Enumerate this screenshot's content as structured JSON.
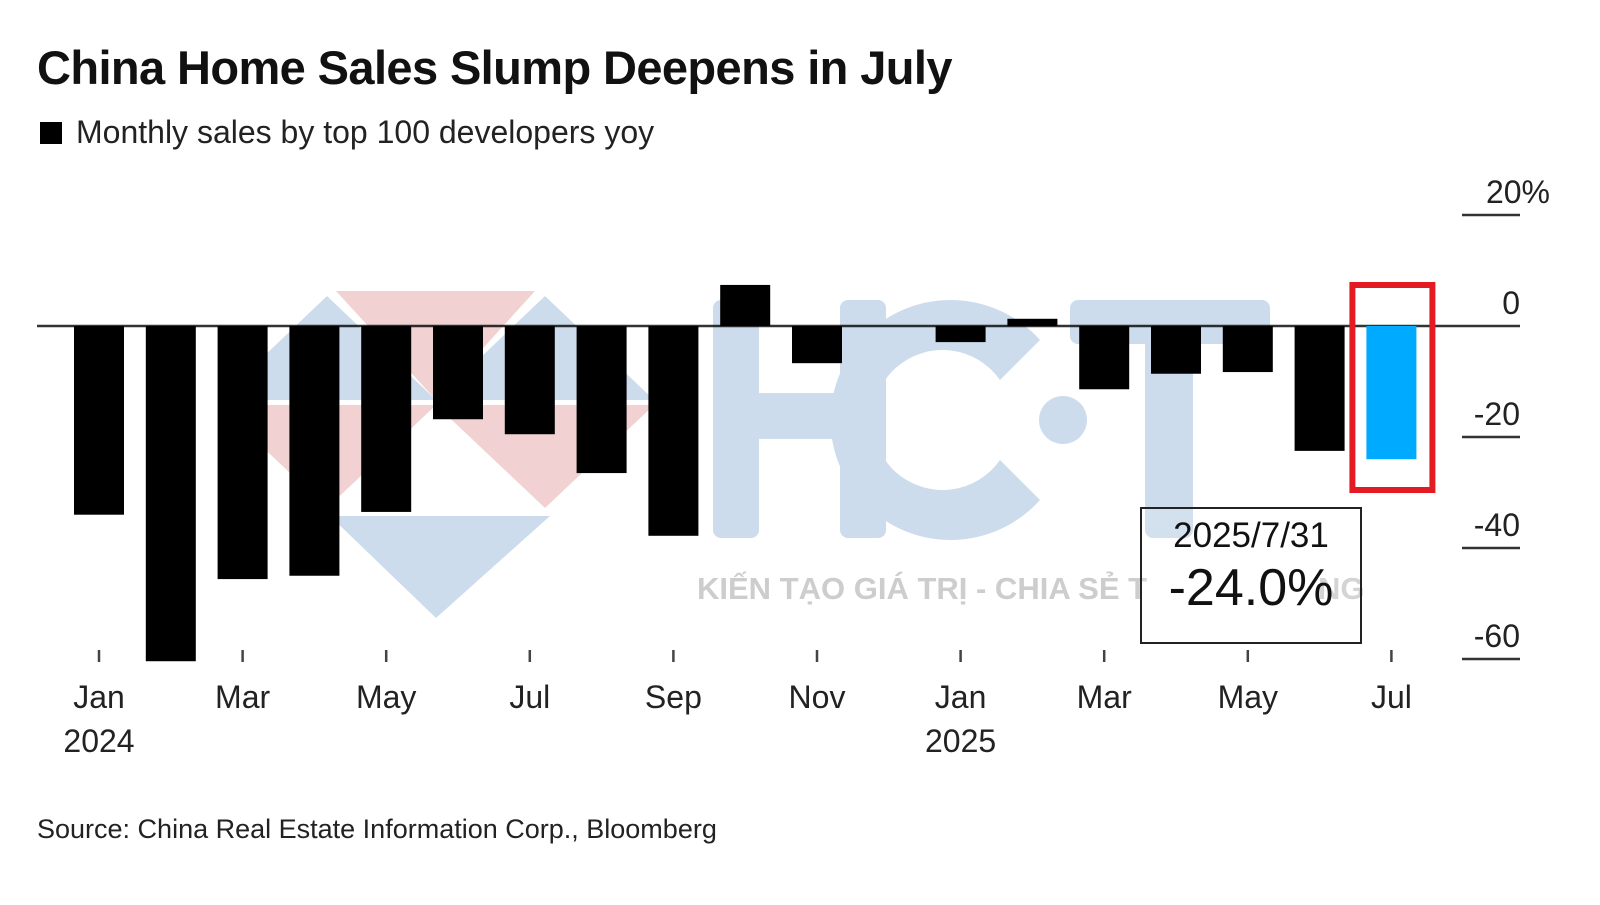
{
  "header": {
    "title": "China Home Sales Slump Deepens in July",
    "legend_label": "Monthly sales by top 100 developers yoy"
  },
  "footer": {
    "source": "Source: China Real Estate Information Corp., Bloomberg"
  },
  "watermark": {
    "logo_text": "HCT",
    "tagline": "KIẾN TẠO GIÁ TRỊ - CHIA SẺ T",
    "tagline_tail": "NG",
    "colors": {
      "blue": "#c7d8ea",
      "pink": "#f0cccc"
    }
  },
  "highlight": {
    "date": "2025/7/31",
    "value": "-24.0%",
    "box_color": "#e31b23"
  },
  "chart_data": {
    "type": "bar",
    "title": "China Home Sales Slump Deepens in July",
    "subtitle": "Monthly sales by top 100 developers yoy",
    "legend": [
      {
        "name": "Monthly sales by top 100 developers yoy",
        "color": "#000000"
      }
    ],
    "legend_position": "top-left",
    "xlabel": "",
    "ylabel": "",
    "y_axis_position": "right",
    "ylim": [
      -60,
      20
    ],
    "yticks": [
      20,
      0,
      -20,
      -40,
      -60
    ],
    "ytick_labels": [
      "20%",
      "0",
      "-20",
      "-40",
      "-60"
    ],
    "grid": false,
    "categories": [
      "2024-01",
      "2024-02",
      "2024-03",
      "2024-04",
      "2024-05",
      "2024-06",
      "2024-07",
      "2024-08",
      "2024-09",
      "2024-10",
      "2024-11",
      "2024-12",
      "2025-01",
      "2025-02",
      "2025-03",
      "2025-04",
      "2025-05",
      "2025-06",
      "2025-07"
    ],
    "xtick_labels": [
      {
        "index": 0,
        "month": "Jan",
        "year": "2024"
      },
      {
        "index": 2,
        "month": "Mar",
        "year": ""
      },
      {
        "index": 4,
        "month": "May",
        "year": ""
      },
      {
        "index": 6,
        "month": "Jul",
        "year": ""
      },
      {
        "index": 8,
        "month": "Sep",
        "year": ""
      },
      {
        "index": 10,
        "month": "Nov",
        "year": ""
      },
      {
        "index": 12,
        "month": "Jan",
        "year": "2025"
      },
      {
        "index": 14,
        "month": "Mar",
        "year": ""
      },
      {
        "index": 16,
        "month": "May",
        "year": ""
      },
      {
        "index": 18,
        "month": "Jul",
        "year": ""
      }
    ],
    "values": [
      -34.0,
      -60.4,
      -45.6,
      -45.0,
      -33.5,
      -16.8,
      -19.5,
      -26.5,
      -37.8,
      7.4,
      -6.7,
      0.0,
      -2.9,
      1.3,
      -11.4,
      -8.6,
      -8.3,
      -22.5,
      -24.0
    ],
    "bar_color": "#000000",
    "highlight_index": 18,
    "highlight_color": "#00aaff",
    "annotations": [
      {
        "index": 18,
        "date": "2025/7/31",
        "value": "-24.0%"
      }
    ]
  }
}
